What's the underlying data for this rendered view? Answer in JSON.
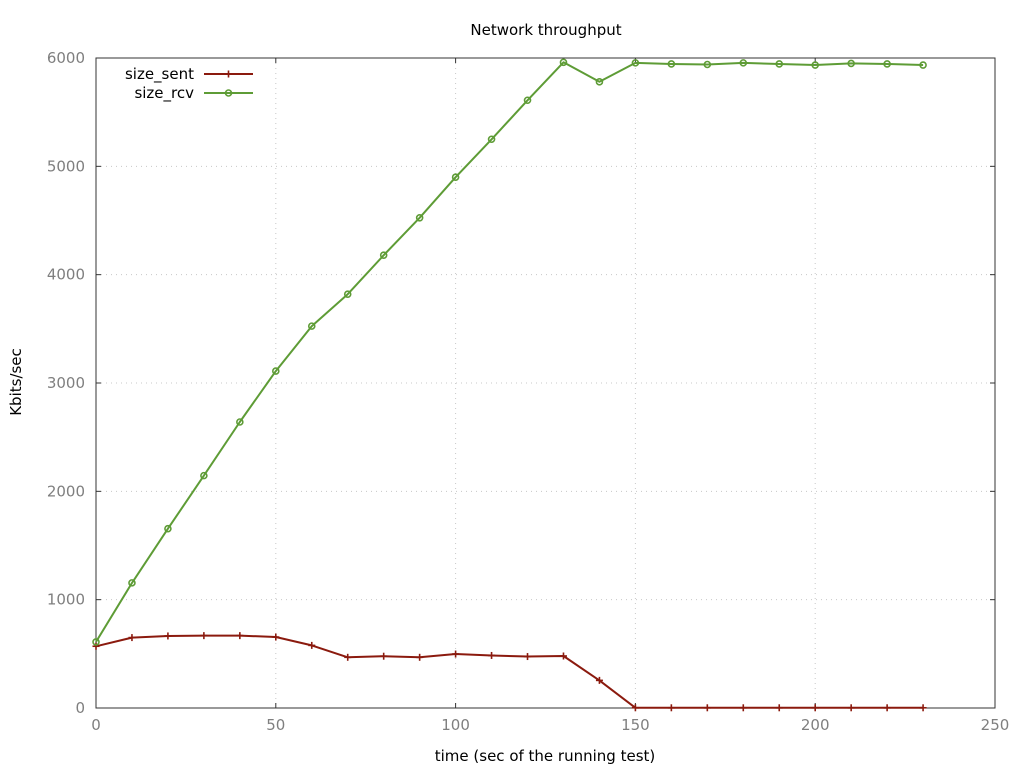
{
  "chart_data": {
    "type": "line",
    "title": "Network throughput",
    "xlabel": "time (sec of the running test)",
    "ylabel": "Kbits/sec",
    "xlim": [
      0,
      250
    ],
    "ylim": [
      0,
      6000
    ],
    "xticks": [
      0,
      50,
      100,
      150,
      200,
      250
    ],
    "yticks": [
      0,
      1000,
      2000,
      3000,
      4000,
      5000,
      6000
    ],
    "grid": true,
    "legend_position": "top-left",
    "x": [
      0,
      10,
      20,
      30,
      40,
      50,
      60,
      70,
      80,
      90,
      100,
      110,
      120,
      130,
      140,
      150,
      160,
      170,
      180,
      190,
      200,
      210,
      220,
      230
    ],
    "series": [
      {
        "name": "size_sent",
        "color": "#8b1a0e",
        "marker": "plus",
        "values": [
          570,
          650,
          665,
          668,
          668,
          655,
          578,
          468,
          478,
          468,
          498,
          485,
          475,
          480,
          255,
          2,
          2,
          2,
          2,
          2,
          2,
          2,
          2,
          2
        ]
      },
      {
        "name": "size_rcv",
        "color": "#5e9c36",
        "marker": "circle",
        "values": [
          610,
          1155,
          1655,
          2145,
          2640,
          3110,
          3525,
          3820,
          4180,
          4525,
          4900,
          5250,
          5610,
          5960,
          5780,
          5955,
          5945,
          5940,
          5955,
          5945,
          5935,
          5950,
          5945,
          5935
        ]
      }
    ]
  }
}
